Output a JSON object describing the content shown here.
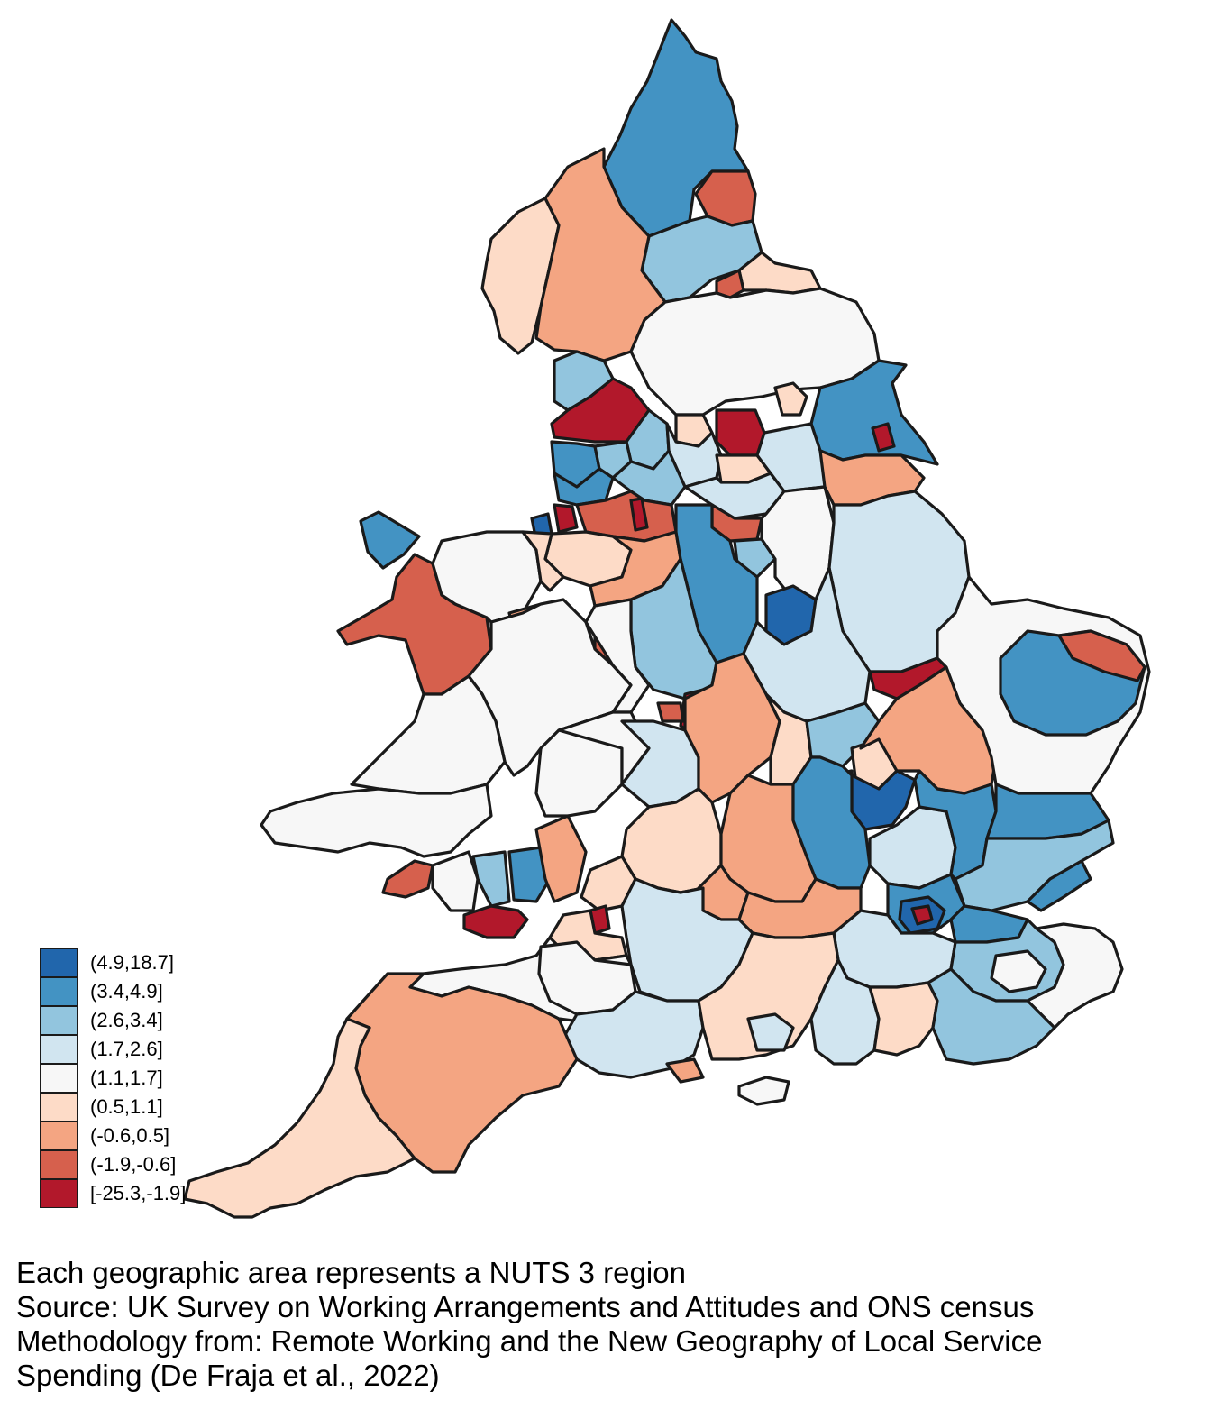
{
  "colors": {
    "c9": "#2166ac",
    "c8": "#4393c3",
    "c7": "#92c5de",
    "c6": "#d1e5f0",
    "c5": "#f7f7f7",
    "c4": "#fddbc7",
    "c3": "#f4a582",
    "c2": "#d6604d",
    "c1": "#b2182b",
    "border": "#1a1a1a"
  },
  "legend": {
    "items": [
      {
        "label": "(4.9,18.7]",
        "color": "#2166ac"
      },
      {
        "label": "(3.4,4.9]",
        "color": "#4393c3"
      },
      {
        "label": "(2.6,3.4]",
        "color": "#92c5de"
      },
      {
        "label": "(1.7,2.6]",
        "color": "#d1e5f0"
      },
      {
        "label": "(1.1,1.7]",
        "color": "#f7f7f7"
      },
      {
        "label": "(0.5,1.1]",
        "color": "#fddbc7"
      },
      {
        "label": "(-0.6,0.5]",
        "color": "#f4a582"
      },
      {
        "label": "(-1.9,-0.6]",
        "color": "#d6604d"
      },
      {
        "label": "[-25.3,-1.9]",
        "color": "#b2182b"
      }
    ]
  },
  "caption": {
    "line1": "Each geographic area represents a NUTS 3 region",
    "line2": "Source: UK Survey on Working Arrangements and Attitudes and ONS census",
    "line3": "Methodology from: Remote Working and the New Geography of Local Service",
    "line4": "Spending (De Fraja et al., 2022)"
  }
}
